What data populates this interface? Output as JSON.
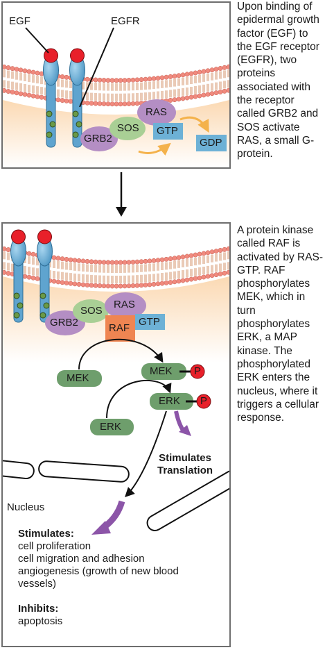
{
  "top_panel": {
    "egf_label": "EGF",
    "egfr_label": "EGFR",
    "grb2": "GRB2",
    "sos": "SOS",
    "ras": "RAS",
    "gtp": "GTP",
    "gdp": "GDP"
  },
  "top_caption": "Upon binding of epidermal growth factor (EGF) to the EGF receptor (EGFR), two proteins associated with the receptor called GRB2 and SOS activate RAS, a small G-protein.",
  "bottom_panel": {
    "grb2": "GRB2",
    "sos": "SOS",
    "ras": "RAS",
    "raf": "RAF",
    "gtp": "GTP",
    "mek": "MEK",
    "mek_p": "MEK",
    "p1": "P",
    "erk": "ERK",
    "erk_p": "ERK",
    "p2": "P",
    "stimulates_translation_1": "Stimulates",
    "stimulates_translation_2": "Translation",
    "nucleus": "Nucleus",
    "stimulates_heading": "Stimulates:",
    "stimulates_items": [
      "cell proliferation",
      "cell migration and adhesion",
      "angiogenesis (growth of new blood",
      "vessels)"
    ],
    "inhibits_heading": "Inhibits:",
    "inhibits_items": [
      "apoptosis"
    ]
  },
  "bottom_caption": "A protein kinase called RAF is activated by RAS-GTP. RAF phosphorylates MEK, which in turn phosphorylates ERK, a MAP kinase. The phosphorylated ERK enters the nucleus, where it triggers a cellular response.",
  "colors": {
    "membrane_head": "#f08a7e",
    "membrane_tail": "#d08a5e",
    "cytoplasm": "#fbe2c4",
    "receptor": "#6fb0d8",
    "ligand": "#e8202a",
    "grb2": "#b48ec4",
    "sos": "#a9cf95",
    "ras": "#b48ec4",
    "gtp": "#6db1d6",
    "raf": "#ef8552",
    "kinase": "#6e9e6c",
    "phosphate": "#e8202a",
    "arrow_purple": "#8c55a8",
    "arrow_orange": "#f4b24b"
  }
}
